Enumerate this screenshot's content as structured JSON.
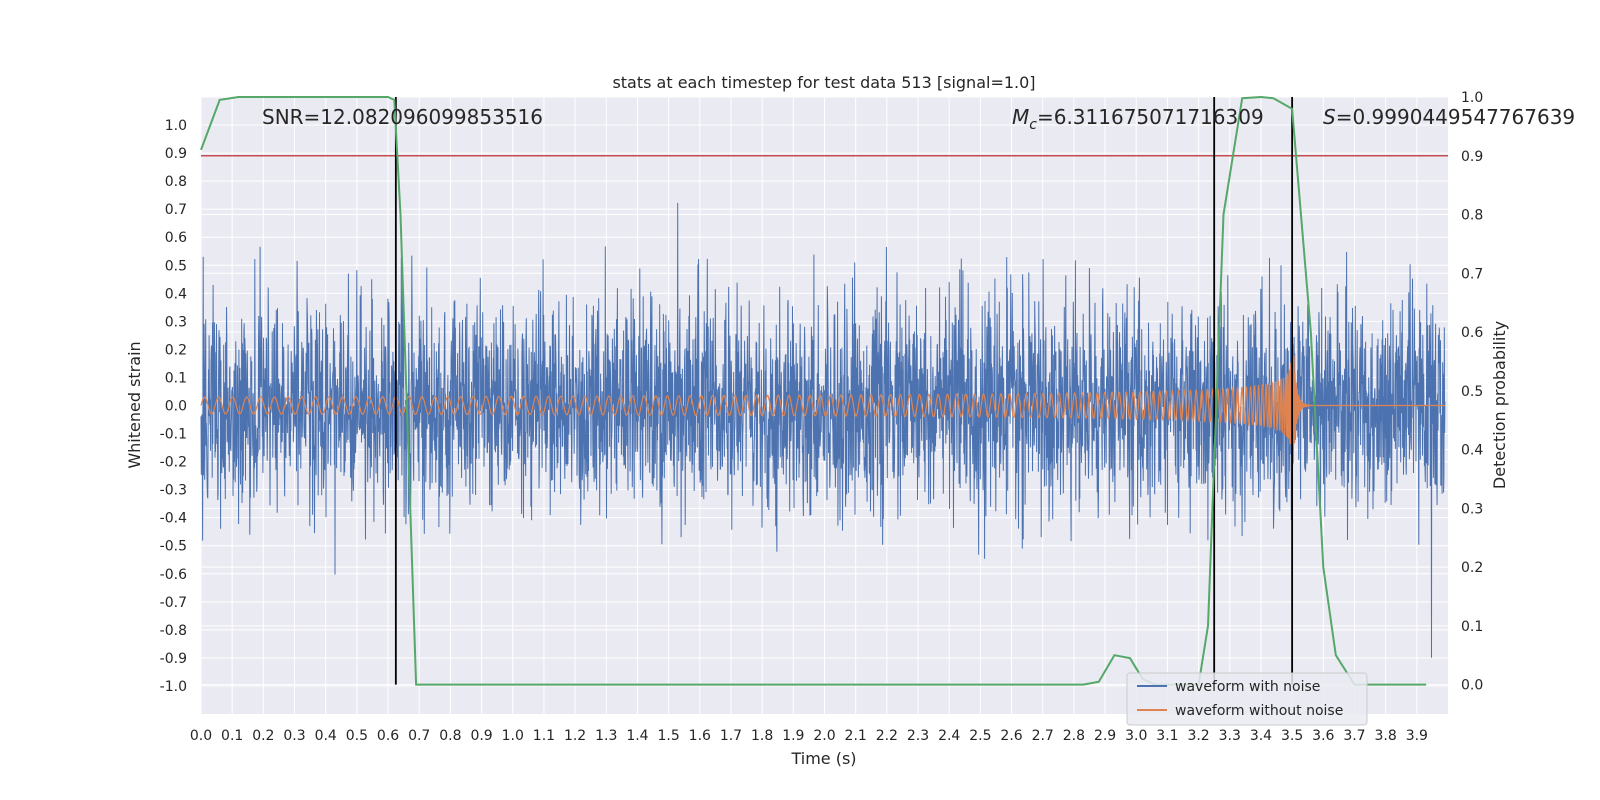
{
  "chart_data": {
    "type": "line",
    "title": "stats at each timestep for test data 513 [signal=1.0]",
    "xlabel": "Time (s)",
    "ylabel": "Whitened strain",
    "y2label": "Detection probability",
    "xlim": [
      0.0,
      4.0
    ],
    "ylim": [
      -1.1,
      1.1
    ],
    "y2lim": [
      -0.05,
      1.0
    ],
    "x_ticks": [
      0.0,
      0.1,
      0.2,
      0.3,
      0.4,
      0.5,
      0.6,
      0.7,
      0.8,
      0.9,
      1.0,
      1.1,
      1.2,
      1.3,
      1.4,
      1.5,
      1.6,
      1.7,
      1.8,
      1.9,
      2.0,
      2.1,
      2.2,
      2.3,
      2.4,
      2.5,
      2.6,
      2.7,
      2.8,
      2.9,
      3.0,
      3.1,
      3.2,
      3.3,
      3.4,
      3.5,
      3.6,
      3.7,
      3.8,
      3.9
    ],
    "x_tick_labels": [
      "0.0",
      "0.1",
      "0.2",
      "0.3",
      "0.4",
      "0.5",
      "0.6",
      "0.7",
      "0.8",
      "0.9",
      "1.0",
      "1.1",
      "1.2",
      "1.3",
      "1.4",
      "1.5",
      "1.6",
      "1.7",
      "1.8",
      "1.9",
      "2.0",
      "2.1",
      "2.2",
      "2.3",
      "2.4",
      "2.5",
      "2.6",
      "2.7",
      "2.8",
      "2.9",
      "3.0",
      "3.1",
      "3.2",
      "3.3",
      "3.4",
      "3.5",
      "3.6",
      "3.7",
      "3.8",
      "3.9"
    ],
    "y_ticks": [
      1.0,
      0.9,
      0.8,
      0.7,
      0.6,
      0.5,
      0.4,
      0.3,
      0.2,
      0.1,
      0.0,
      -0.1,
      -0.2,
      -0.3,
      -0.4,
      -0.5,
      -0.6,
      -0.7,
      -0.8,
      -0.9,
      -1.0
    ],
    "y_tick_labels": [
      "1.0",
      "0.9",
      "0.8",
      "0.7",
      "0.6",
      "0.5",
      "0.4",
      "0.3",
      "0.2",
      "0.1",
      "0.0",
      "-0.1",
      "-0.2",
      "-0.3",
      "-0.4",
      "-0.5",
      "-0.6",
      "-0.7",
      "-0.8",
      "-0.9",
      "-1.0"
    ],
    "y2_ticks": [
      1.0,
      0.9,
      0.8,
      0.7,
      0.6,
      0.5,
      0.4,
      0.3,
      0.2,
      0.1,
      0.0
    ],
    "y2_tick_labels": [
      "1.0",
      "0.9",
      "0.8",
      "0.7",
      "0.6",
      "0.5",
      "0.4",
      "0.3",
      "0.2",
      "0.1",
      "0.0"
    ],
    "grid": true,
    "legend_position": "lower-right",
    "annotations": {
      "snr": "SNR=12.082096099853516",
      "mc_symbol": "M",
      "mc_sub": "c",
      "mc_value": "=6.311675071716309",
      "s_symbol": "S",
      "s_value": "=0.9990449547767639"
    },
    "series": [
      {
        "name": "waveform with noise",
        "color": "#4c72b0",
        "axis": "left",
        "kind": "noise",
        "amplitude_typical": 0.25,
        "amplitude_max": 1.0,
        "x_range": [
          0.0,
          3.99
        ]
      },
      {
        "name": "waveform without noise",
        "color": "#dd8452",
        "axis": "left",
        "kind": "chirp",
        "start_amplitude": 0.03,
        "peak_amplitude": 0.32,
        "merger_time": 3.5,
        "x_range": [
          0.0,
          3.99
        ]
      },
      {
        "name": "",
        "color": "#55a868",
        "axis": "right",
        "kind": "probability",
        "x": [
          0.0,
          0.06,
          0.12,
          0.6,
          0.62,
          0.64,
          0.69,
          2.83,
          2.88,
          2.93,
          2.98,
          3.02,
          3.06,
          3.1,
          3.2,
          3.23,
          3.28,
          3.34,
          3.4,
          3.44,
          3.5,
          3.56,
          3.6,
          3.64,
          3.7,
          3.93
        ],
        "y": [
          0.91,
          0.995,
          1.0,
          1.0,
          0.995,
          0.8,
          0.0,
          0.0,
          0.005,
          0.05,
          0.045,
          0.01,
          0.0,
          0.0,
          0.0,
          0.1,
          0.8,
          0.998,
          1.0,
          0.998,
          0.98,
          0.6,
          0.2,
          0.05,
          0.0,
          0.0
        ]
      }
    ],
    "threshold_line": {
      "y2": 0.9,
      "color": "#c44e52"
    },
    "vertical_lines": [
      0.625,
      3.25,
      3.5
    ]
  }
}
